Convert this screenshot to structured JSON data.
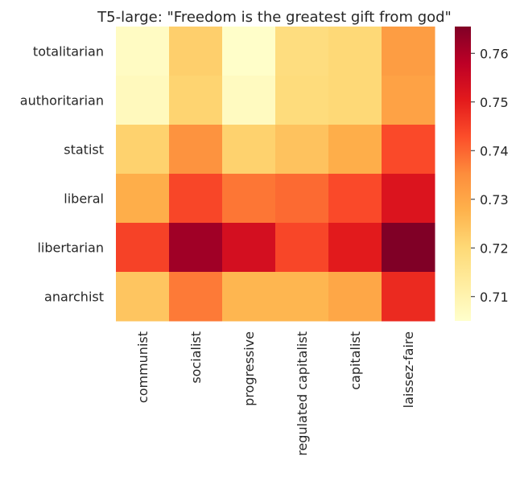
{
  "chart_data": {
    "type": "heatmap",
    "title": "T5-large: \"Freedom is the greatest gift from god\"",
    "xlabel": "",
    "ylabel": "",
    "x_categories": [
      "communist",
      "socialist",
      "progressive",
      "regulated capitalist",
      "capitalist",
      "laissez-faire"
    ],
    "y_categories": [
      "totalitarian",
      "authoritarian",
      "statist",
      "liberal",
      "libertarian",
      "anarchist"
    ],
    "values": [
      [
        0.7065,
        0.722,
        0.7055,
        0.7185,
        0.72,
        0.732
      ],
      [
        0.7075,
        0.721,
        0.707,
        0.719,
        0.72,
        0.731
      ],
      [
        0.7215,
        0.734,
        0.7215,
        0.7245,
        0.7285,
        0.7435
      ],
      [
        0.7285,
        0.744,
        0.738,
        0.7395,
        0.7435,
        0.752
      ],
      [
        0.7445,
        0.7615,
        0.7535,
        0.744,
        0.7505,
        0.7655
      ],
      [
        0.724,
        0.7375,
        0.727,
        0.727,
        0.73,
        0.748
      ]
    ],
    "colorscale": "YlOrRd",
    "colorbar": {
      "min": 0.705,
      "max": 0.7655,
      "ticks": [
        0.71,
        0.72,
        0.73,
        0.74,
        0.75,
        0.76
      ],
      "tick_labels": [
        "0.71",
        "0.72",
        "0.73",
        "0.74",
        "0.75",
        "0.76"
      ]
    },
    "grid": false,
    "legend": "colorbar-right"
  }
}
